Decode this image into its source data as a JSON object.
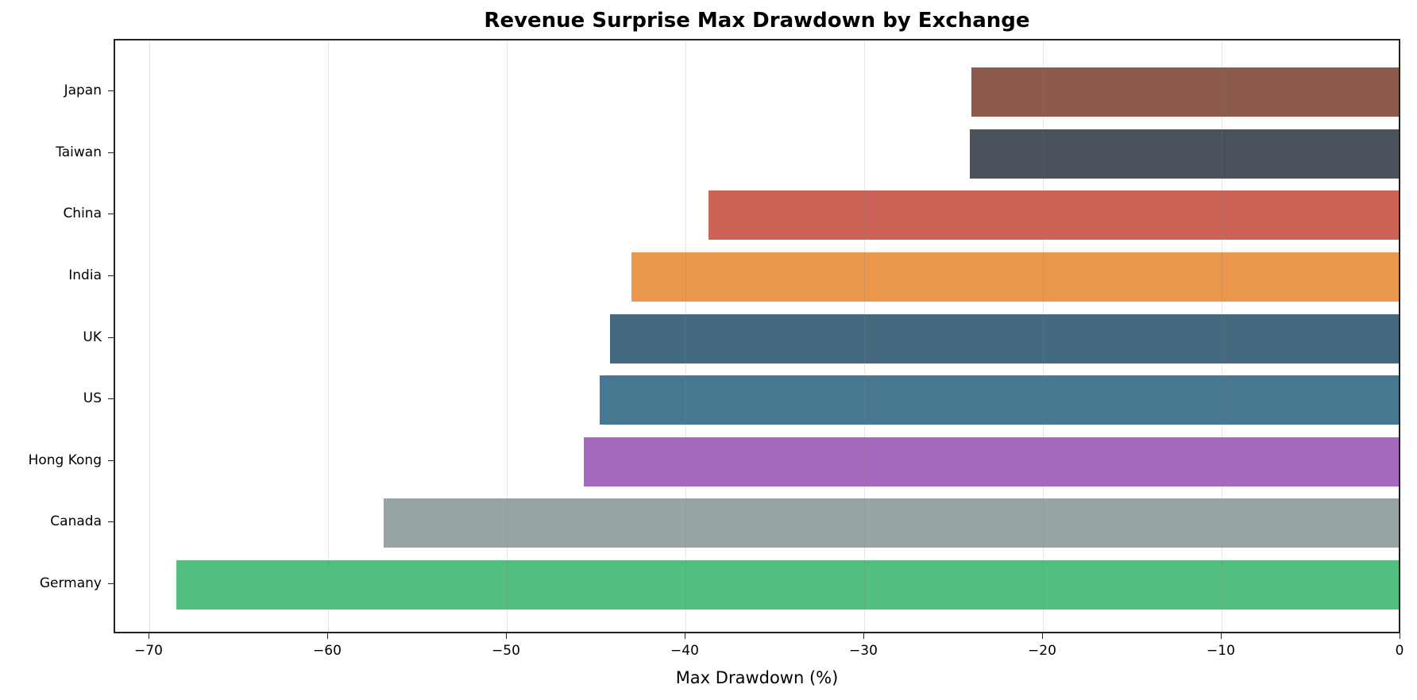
{
  "chart_data": {
    "type": "bar",
    "orientation": "horizontal",
    "title": "Revenue Surprise Max Drawdown by Exchange",
    "xlabel": "Max Drawdown (%)",
    "ylabel": "",
    "xlim": [
      -72.0,
      0
    ],
    "xticks": [
      -70,
      -60,
      -50,
      -40,
      -30,
      -20,
      -10,
      0
    ],
    "xtick_labels": [
      "−70",
      "−60",
      "−50",
      "−40",
      "−30",
      "−20",
      "−10",
      "0"
    ],
    "grid": {
      "x": true,
      "y": false
    },
    "legend": null,
    "categories": [
      "Japan",
      "Taiwan",
      "China",
      "India",
      "UK",
      "US",
      "Hong Kong",
      "Canada",
      "Germany"
    ],
    "values": [
      -24.1,
      -24.2,
      -38.8,
      -43.1,
      -44.3,
      -44.9,
      -45.8,
      -57.0,
      -68.6
    ],
    "colors": [
      "#8B5A4A",
      "#4A525C",
      "#CB6357",
      "#EB984E",
      "#45697F",
      "#487792",
      "#A569BD",
      "#98A4A3",
      "#52BE80"
    ]
  }
}
